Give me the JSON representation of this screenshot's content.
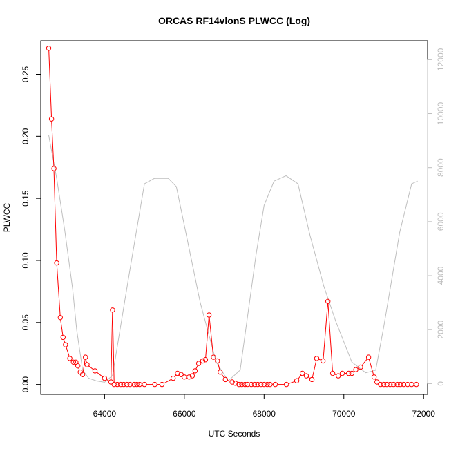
{
  "chart_data": {
    "type": "line",
    "title": "ORCAS RF14vlonS PLWCC (Log)",
    "xlabel": "UTC Seconds",
    "ylabel": "PLWCC",
    "xlim": [
      62400,
      72100
    ],
    "ylim": [
      -0.008,
      0.277
    ],
    "y2lim": [
      -400,
      12700
    ],
    "x_ticks": [
      64000,
      66000,
      68000,
      70000,
      72000
    ],
    "y_ticks": [
      0.0,
      0.05,
      0.1,
      0.15,
      0.2,
      0.25
    ],
    "y_tick_labels": [
      "0.00",
      "0.05",
      "0.10",
      "0.15",
      "0.20",
      "0.25"
    ],
    "y2_ticks": [
      0,
      2000,
      4000,
      6000,
      8000,
      10000,
      12000
    ],
    "colors": {
      "primary": "#ff0000",
      "secondary": "#bebebe",
      "axis": "#000000"
    },
    "series": [
      {
        "axis": "left",
        "style": "points-and-lines",
        "color": "#ff0000",
        "x": [
          62600,
          62670,
          62730,
          62800,
          62890,
          62960,
          63020,
          63130,
          63220,
          63280,
          63330,
          63390,
          63450,
          63520,
          63560,
          63760,
          64000,
          64160,
          64200,
          64240,
          64320,
          64400,
          64480,
          64560,
          64640,
          64740,
          64810,
          64880,
          65000,
          65260,
          65440,
          65720,
          65830,
          65920,
          66000,
          66120,
          66200,
          66270,
          66360,
          66460,
          66530,
          66620,
          66730,
          66830,
          66900,
          67030,
          67200,
          67280,
          67370,
          67440,
          67520,
          67580,
          67680,
          67760,
          67840,
          67920,
          68000,
          68080,
          68150,
          68280,
          68560,
          68820,
          68960,
          69060,
          69200,
          69320,
          69480,
          69600,
          69720,
          69860,
          69960,
          70120,
          70200,
          70300,
          70420,
          70620,
          70760,
          70830,
          70920,
          71000,
          71080,
          71160,
          71250,
          71340,
          71420,
          71500,
          71600,
          71700,
          71820
        ],
        "y": [
          0.271,
          0.214,
          0.174,
          0.098,
          0.054,
          0.038,
          0.032,
          0.021,
          0.018,
          0.018,
          0.015,
          0.01,
          0.008,
          0.022,
          0.016,
          0.011,
          0.005,
          0.002,
          0.06,
          0.0,
          0.0,
          0.0,
          0.0,
          0.0,
          0.0,
          0.0,
          0.0,
          0.0,
          0.0,
          0.0,
          0.0,
          0.005,
          0.009,
          0.008,
          0.006,
          0.006,
          0.007,
          0.011,
          0.017,
          0.019,
          0.02,
          0.056,
          0.022,
          0.019,
          0.01,
          0.004,
          0.002,
          0.001,
          0.0,
          0.0,
          0.0,
          0.0,
          0.0,
          0.0,
          0.0,
          0.0,
          0.0,
          0.0,
          0.0,
          0.0,
          0.0,
          0.003,
          0.009,
          0.007,
          0.004,
          0.021,
          0.019,
          0.067,
          0.009,
          0.007,
          0.009,
          0.009,
          0.009,
          0.012,
          0.014,
          0.022,
          0.006,
          0.002,
          0.0,
          0.0,
          0.0,
          0.0,
          0.0,
          0.0,
          0.0,
          0.0,
          0.0,
          0.0,
          0.0
        ]
      },
      {
        "axis": "right",
        "style": "line",
        "color": "#bebebe",
        "x": [
          62600,
          62800,
          63000,
          63200,
          63300,
          63450,
          63600,
          63800,
          64000,
          64200,
          64600,
          65000,
          65250,
          65600,
          65800,
          66400,
          66800,
          67100,
          67400,
          67800,
          68000,
          68250,
          68550,
          68850,
          69150,
          69500,
          69800,
          70200,
          70550,
          70800,
          71000,
          71400,
          71700,
          71850
        ],
        "y": [
          9200,
          7600,
          5700,
          3500,
          2000,
          500,
          200,
          100,
          50,
          300,
          3900,
          7400,
          7600,
          7600,
          7300,
          3000,
          800,
          100,
          500,
          4800,
          6600,
          7500,
          7700,
          7400,
          5500,
          3600,
          2300,
          800,
          400,
          500,
          2100,
          5600,
          7400,
          7500
        ]
      }
    ]
  }
}
